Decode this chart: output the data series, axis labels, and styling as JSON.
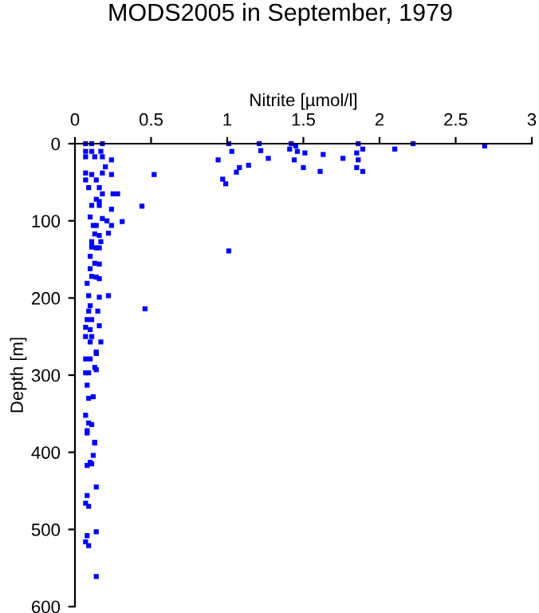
{
  "chart_data": {
    "type": "scatter",
    "title": "MODS2005 in September, 1979",
    "xlabel": "Nitrite [µmol/l]",
    "ylabel": "Depth [m]",
    "xlim": [
      0,
      3
    ],
    "xticks": [
      0,
      0.5,
      1,
      1.5,
      2,
      2.5,
      3
    ],
    "ylim": [
      600,
      0
    ],
    "yticks": [
      0,
      100,
      200,
      300,
      400,
      500,
      600
    ],
    "grid": false,
    "marker": "square",
    "series": [
      {
        "color": "#0000ff",
        "x": [
          1.01,
          1.03,
          0.94,
          1.21,
          1.22,
          1.27,
          1.14,
          1.08,
          1.06,
          0.97,
          0.99,
          1.42,
          1.41,
          1.45,
          1.46,
          1.44,
          1.51,
          1.5,
          1.63,
          1.61,
          1.76,
          1.86,
          1.89,
          1.85,
          1.86,
          1.85,
          1.89,
          2.1,
          2.22,
          2.69,
          0.52,
          0.44,
          0.31,
          0.07,
          0.11,
          0.18,
          0.07,
          0.11,
          0.17,
          0.07,
          0.13,
          0.18,
          0.24,
          0.2,
          0.07,
          0.11,
          0.18,
          0.24,
          0.07,
          0.14,
          0.09,
          0.16,
          0.18,
          0.25,
          0.28,
          0.14,
          0.16,
          0.11,
          0.16,
          0.24,
          0.1,
          0.18,
          0.21,
          0.12,
          0.14,
          0.24,
          0.13,
          0.16,
          0.11,
          0.16,
          0.22,
          0.11,
          0.17,
          0.11,
          0.14,
          0.1,
          0.13,
          0.16,
          0.1,
          0.11,
          0.14,
          0.08,
          0.16,
          0.09,
          0.16,
          0.22,
          0.1,
          0.09,
          0.15,
          0.08,
          0.11,
          0.16,
          0.07,
          0.1,
          0.07,
          0.11,
          0.1,
          0.17,
          0.14,
          0.14,
          0.07,
          0.1,
          0.13,
          0.07,
          0.09,
          0.14,
          0.08,
          0.12,
          0.09,
          0.07,
          0.09,
          0.11,
          0.08,
          0.13,
          0.08,
          0.13,
          0.12,
          0.1,
          0.08,
          0.11,
          0.14,
          0.08,
          0.07,
          0.09,
          0.14,
          0.08,
          0.07,
          0.09,
          0.14,
          1.01,
          0.46
        ],
        "values": [
          0,
          10,
          21,
          0,
          9,
          19,
          28,
          31,
          37,
          46,
          52,
          0,
          7,
          3,
          10,
          21,
          12,
          31,
          14,
          36,
          19,
          0,
          7,
          12,
          21,
          31,
          36,
          7,
          0,
          3,
          40,
          81,
          101,
          0,
          0,
          0,
          10,
          10,
          10,
          17,
          17,
          17,
          21,
          30,
          38,
          40,
          38,
          40,
          47,
          47,
          57,
          57,
          65,
          65,
          65,
          72,
          75,
          80,
          80,
          85,
          95,
          97,
          100,
          106,
          106,
          106,
          117,
          119,
          133,
          135,
          116,
          127,
          127,
          134,
          135,
          146,
          155,
          156,
          162,
          172,
          173,
          181,
          175,
          197,
          199,
          197,
          210,
          217,
          217,
          228,
          228,
          236,
          238,
          241,
          250,
          250,
          257,
          257,
          270,
          272,
          279,
          279,
          290,
          297,
          297,
          293,
          313,
          328,
          330,
          352,
          362,
          364,
          372,
          387,
          375,
          388,
          404,
          413,
          417,
          415,
          445,
          456,
          466,
          470,
          503,
          508,
          516,
          521,
          561,
          139,
          214
        ]
      }
    ]
  }
}
